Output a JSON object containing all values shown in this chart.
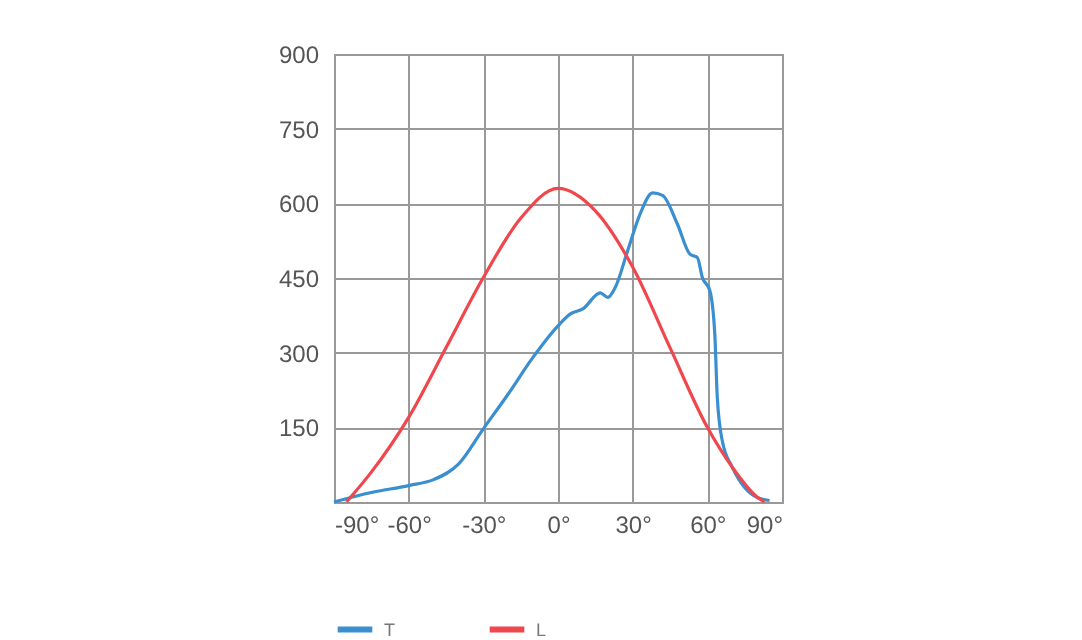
{
  "chart_data": {
    "type": "line",
    "series": [
      {
        "name": "T",
        "color": "#3a8fd0",
        "x": [
          -90,
          -75,
          -60,
          -50,
          -40,
          -30,
          -20,
          -10,
          0,
          5,
          10,
          17,
          20,
          23,
          28,
          33,
          38,
          42,
          48,
          53,
          56,
          58,
          61,
          63,
          64,
          66,
          70,
          75,
          80,
          85
        ],
        "values": [
          0,
          19,
          33,
          45,
          76,
          147,
          217,
          291,
          354,
          378,
          388,
          420,
          411,
          431,
          505,
          579,
          621,
          616,
          558,
          498,
          491,
          451,
          425,
          337,
          210,
          123,
          70,
          29,
          9,
          3
        ]
      },
      {
        "name": "L",
        "color": "#f0474f",
        "x": [
          -85,
          -75,
          -60,
          -45,
          -30,
          -15,
          0,
          15,
          30,
          45,
          60,
          70,
          80,
          83
        ],
        "values": [
          0,
          60,
          170,
          310,
          451,
          570,
          630,
          585,
          472,
          310,
          150,
          70,
          10,
          0
        ]
      }
    ],
    "xlim": [
      -90,
      90
    ],
    "xticks": [
      {
        "value": -90,
        "label": "-90°"
      },
      {
        "value": -60,
        "label": "-60°"
      },
      {
        "value": -30,
        "label": "-30°"
      },
      {
        "value": 0,
        "label": "0°"
      },
      {
        "value": 30,
        "label": "30°"
      },
      {
        "value": 60,
        "label": "60°"
      },
      {
        "value": 90,
        "label": "90°"
      }
    ],
    "ylim": [
      0,
      900
    ],
    "yticks": [
      {
        "value": 0,
        "label": null
      },
      150,
      300,
      450,
      600,
      750,
      900
    ],
    "grid": true,
    "legend": "bottom",
    "marker": "none",
    "line_style": "solid"
  }
}
